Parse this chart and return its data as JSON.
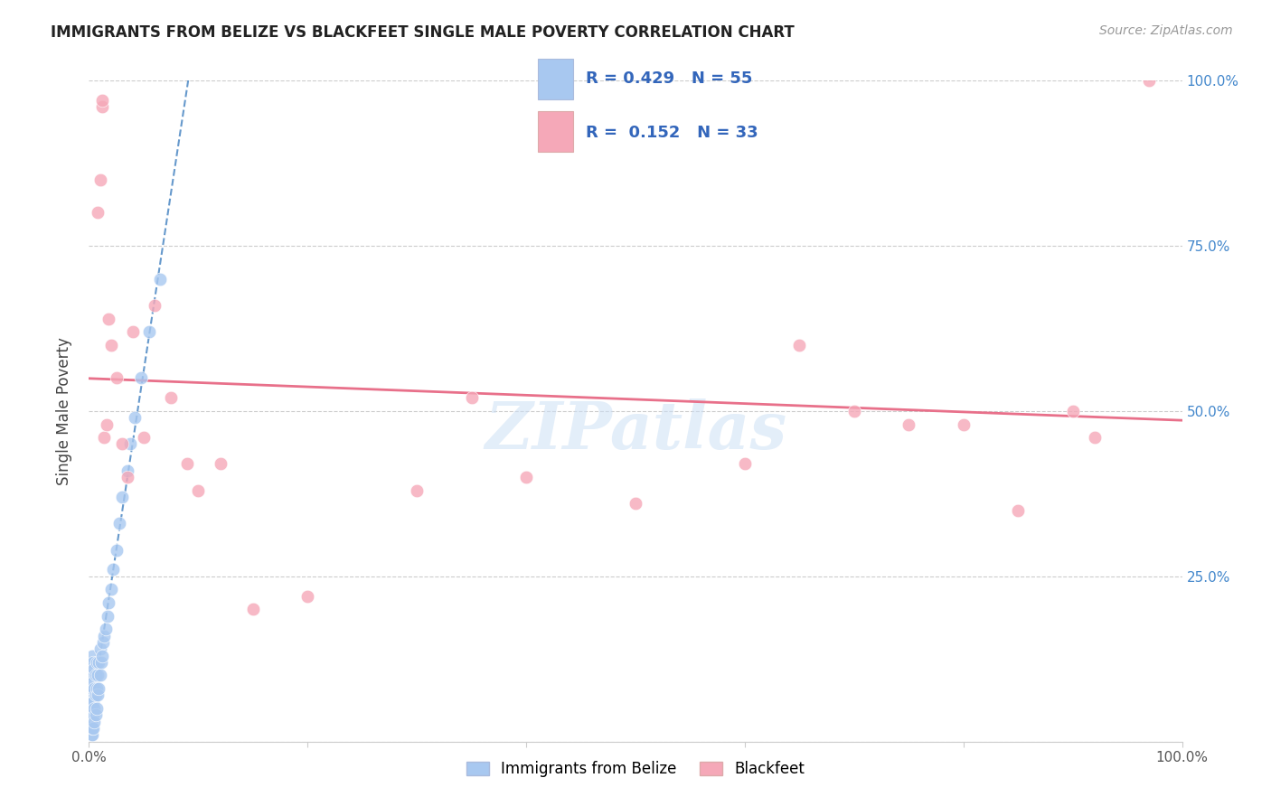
{
  "title": "IMMIGRANTS FROM BELIZE VS BLACKFEET SINGLE MALE POVERTY CORRELATION CHART",
  "source": "Source: ZipAtlas.com",
  "ylabel": "Single Male Poverty",
  "ytick_labels": [
    "",
    "25.0%",
    "50.0%",
    "75.0%",
    "100.0%"
  ],
  "ytick_values": [
    0.0,
    0.25,
    0.5,
    0.75,
    1.0
  ],
  "legend_belize_R": "0.429",
  "legend_belize_N": "55",
  "legend_blackfeet_R": "0.152",
  "legend_blackfeet_N": "33",
  "legend_label1": "Immigrants from Belize",
  "legend_label2": "Blackfeet",
  "belize_color": "#a8c8f0",
  "blackfeet_color": "#f5a8b8",
  "belize_line_color": "#6699cc",
  "blackfeet_line_color": "#e8708a",
  "watermark": "ZIPatlas",
  "belize_x": [
    0.001,
    0.001,
    0.001,
    0.002,
    0.002,
    0.002,
    0.002,
    0.002,
    0.002,
    0.003,
    0.003,
    0.003,
    0.003,
    0.003,
    0.003,
    0.003,
    0.004,
    0.004,
    0.004,
    0.004,
    0.004,
    0.005,
    0.005,
    0.005,
    0.005,
    0.006,
    0.006,
    0.006,
    0.007,
    0.007,
    0.007,
    0.008,
    0.008,
    0.009,
    0.009,
    0.01,
    0.01,
    0.011,
    0.012,
    0.013,
    0.014,
    0.015,
    0.017,
    0.018,
    0.02,
    0.022,
    0.025,
    0.028,
    0.03,
    0.035,
    0.038,
    0.042,
    0.048,
    0.055,
    0.065
  ],
  "belize_y": [
    0.02,
    0.04,
    0.06,
    0.01,
    0.03,
    0.05,
    0.07,
    0.09,
    0.11,
    0.01,
    0.02,
    0.04,
    0.06,
    0.08,
    0.1,
    0.13,
    0.02,
    0.04,
    0.06,
    0.09,
    0.12,
    0.03,
    0.05,
    0.08,
    0.11,
    0.04,
    0.07,
    0.1,
    0.05,
    0.08,
    0.12,
    0.07,
    0.1,
    0.08,
    0.12,
    0.1,
    0.14,
    0.12,
    0.13,
    0.15,
    0.16,
    0.17,
    0.19,
    0.21,
    0.23,
    0.26,
    0.29,
    0.33,
    0.37,
    0.41,
    0.45,
    0.49,
    0.55,
    0.62,
    0.7
  ],
  "blackfeet_x": [
    0.008,
    0.01,
    0.012,
    0.012,
    0.014,
    0.016,
    0.018,
    0.02,
    0.025,
    0.03,
    0.035,
    0.04,
    0.05,
    0.06,
    0.075,
    0.09,
    0.1,
    0.12,
    0.15,
    0.2,
    0.3,
    0.35,
    0.4,
    0.5,
    0.6,
    0.65,
    0.7,
    0.75,
    0.8,
    0.85,
    0.9,
    0.92,
    0.97
  ],
  "blackfeet_y": [
    0.8,
    0.85,
    0.96,
    0.97,
    0.46,
    0.48,
    0.64,
    0.6,
    0.55,
    0.45,
    0.4,
    0.62,
    0.46,
    0.66,
    0.52,
    0.42,
    0.38,
    0.42,
    0.2,
    0.22,
    0.38,
    0.52,
    0.4,
    0.36,
    0.42,
    0.6,
    0.5,
    0.48,
    0.48,
    0.35,
    0.5,
    0.46,
    1.0
  ]
}
